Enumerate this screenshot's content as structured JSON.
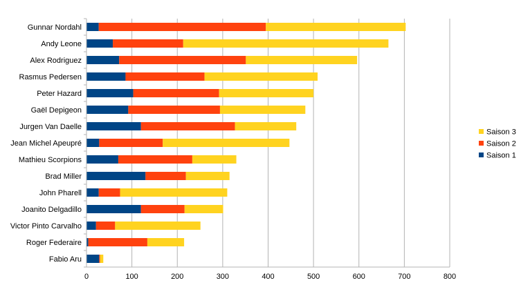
{
  "chart_data": {
    "type": "bar",
    "orientation": "horizontal",
    "stacked": true,
    "categories": [
      "Gunnar Nordahl",
      "Andy Leone",
      "Alex Rodriguez",
      "Rasmus Pedersen",
      "Peter Hazard",
      "Gaël Depigeon",
      "Jurgen Van Daelle",
      "Jean Michel Apeupré",
      "Mathieu Scorpions",
      "Brad Miller",
      "John Pharell",
      "Joanito Delgadillo",
      "Victor Pinto Carvalho",
      "Roger Federaire",
      "Fabio Aru"
    ],
    "series": [
      {
        "name": "Saison 1",
        "color": "#004586",
        "values": [
          27,
          58,
          72,
          86,
          103,
          92,
          120,
          28,
          70,
          130,
          27,
          120,
          21,
          4,
          28
        ]
      },
      {
        "name": "Saison 2",
        "color": "#ff420e",
        "values": [
          368,
          155,
          279,
          174,
          189,
          202,
          207,
          140,
          163,
          89,
          47,
          96,
          42,
          130,
          2
        ]
      },
      {
        "name": "Saison 3",
        "color": "#ffd320",
        "values": [
          308,
          452,
          245,
          249,
          208,
          188,
          135,
          279,
          97,
          96,
          236,
          85,
          188,
          81,
          7
        ]
      }
    ],
    "xticks": [
      0,
      100,
      200,
      300,
      400,
      500,
      600,
      700,
      800
    ],
    "xlim": [
      0,
      800
    ],
    "grid": "vertical",
    "legend": {
      "position": "right",
      "entries": [
        "Saison 3",
        "Saison 2",
        "Saison 1"
      ]
    },
    "title": "",
    "xlabel": "",
    "ylabel": ""
  }
}
